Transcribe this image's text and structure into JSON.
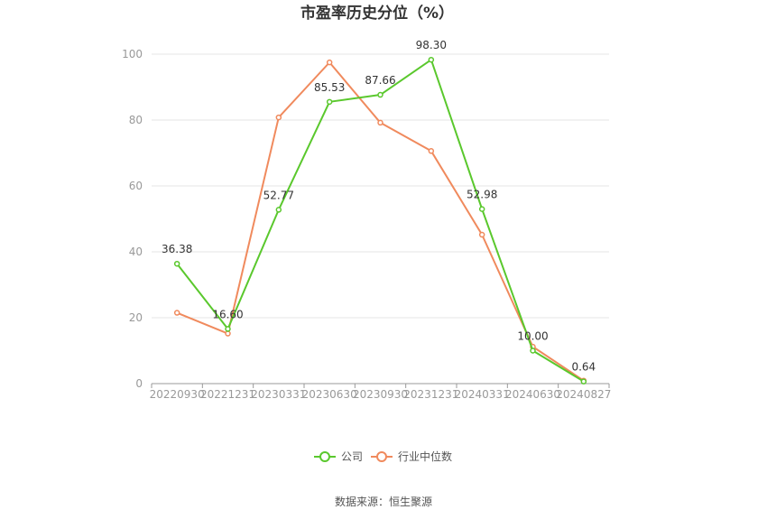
{
  "chart_data": {
    "type": "line",
    "title": "市盈率历史分位（%）",
    "categories": [
      "20220930",
      "20221231",
      "20230331",
      "20230630",
      "20230930",
      "20231231",
      "20240331",
      "20240630",
      "20240827"
    ],
    "series": [
      {
        "name": "公司",
        "color": "#5ac82d",
        "values": [
          36.38,
          16.6,
          52.77,
          85.53,
          87.66,
          98.3,
          52.98,
          10.0,
          0.64
        ],
        "labels": [
          "36.38",
          "16.60",
          "52.77",
          "85.53",
          "87.66",
          "98.30",
          "52.98",
          "10.00",
          "0.64"
        ]
      },
      {
        "name": "行业中位数",
        "color": "#f08a5d",
        "values": [
          21.5,
          15.2,
          80.8,
          97.5,
          79.2,
          70.6,
          45.2,
          11.2,
          0.9
        ]
      }
    ],
    "ylim": [
      0,
      100
    ],
    "yticks": [
      0,
      20,
      40,
      60,
      80,
      100
    ],
    "grid": true,
    "legend": "bottom-center"
  },
  "footer": {
    "source": "数据来源：恒生聚源"
  }
}
